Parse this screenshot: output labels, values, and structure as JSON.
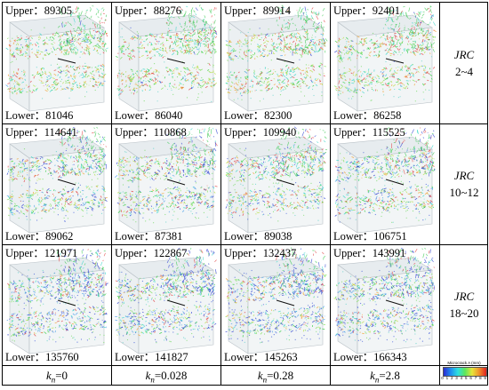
{
  "rows": [
    {
      "cells": [
        {
          "upper": "Upper：89305",
          "lower": "Lower：81046"
        },
        {
          "upper": "Upper：88276",
          "lower": "Lower：86040"
        },
        {
          "upper": "Upper：89914",
          "lower": "Lower：82300"
        },
        {
          "upper": "Upper：92401",
          "lower": "Lower：86258"
        }
      ],
      "jrc_label": "JRC",
      "jrc_range": "2~4",
      "blue_level": 0.05
    },
    {
      "cells": [
        {
          "upper": "Upper：114641",
          "lower": "Lower：89062"
        },
        {
          "upper": "Upper：110868",
          "lower": "Lower：87381"
        },
        {
          "upper": "Upper：109940",
          "lower": "Lower：89038"
        },
        {
          "upper": "Upper：115525",
          "lower": "Lower：106751"
        }
      ],
      "jrc_label": "JRC",
      "jrc_range": "10~12",
      "blue_level": 0.25
    },
    {
      "cells": [
        {
          "upper": "Upper：121971",
          "lower": "Lower：135760"
        },
        {
          "upper": "Upper：122867",
          "lower": "Lower：141827"
        },
        {
          "upper": "Upper：132437",
          "lower": "Lower：145263"
        },
        {
          "upper": "Upper：143991",
          "lower": "Lower：166343"
        }
      ],
      "jrc_label": "JRC",
      "jrc_range": "18~20",
      "blue_level": 0.45
    }
  ],
  "columns": [
    {
      "k": "k",
      "sub": "n",
      "value": "=0"
    },
    {
      "k": "k",
      "sub": "n",
      "value": "=0.028"
    },
    {
      "k": "k",
      "sub": "n",
      "value": "=0.28"
    },
    {
      "k": "k",
      "sub": "n",
      "value": "=2.8"
    }
  ],
  "legend": {
    "title": "Microcrack A (mm)",
    "ticks": "0 1 2 3 4 5 6 7 8 9",
    "colors": [
      "#2b2bd0",
      "#1f8ff0",
      "#2ee0e0",
      "#5ce65c",
      "#e6e63a",
      "#f0902a",
      "#e02020"
    ]
  }
}
